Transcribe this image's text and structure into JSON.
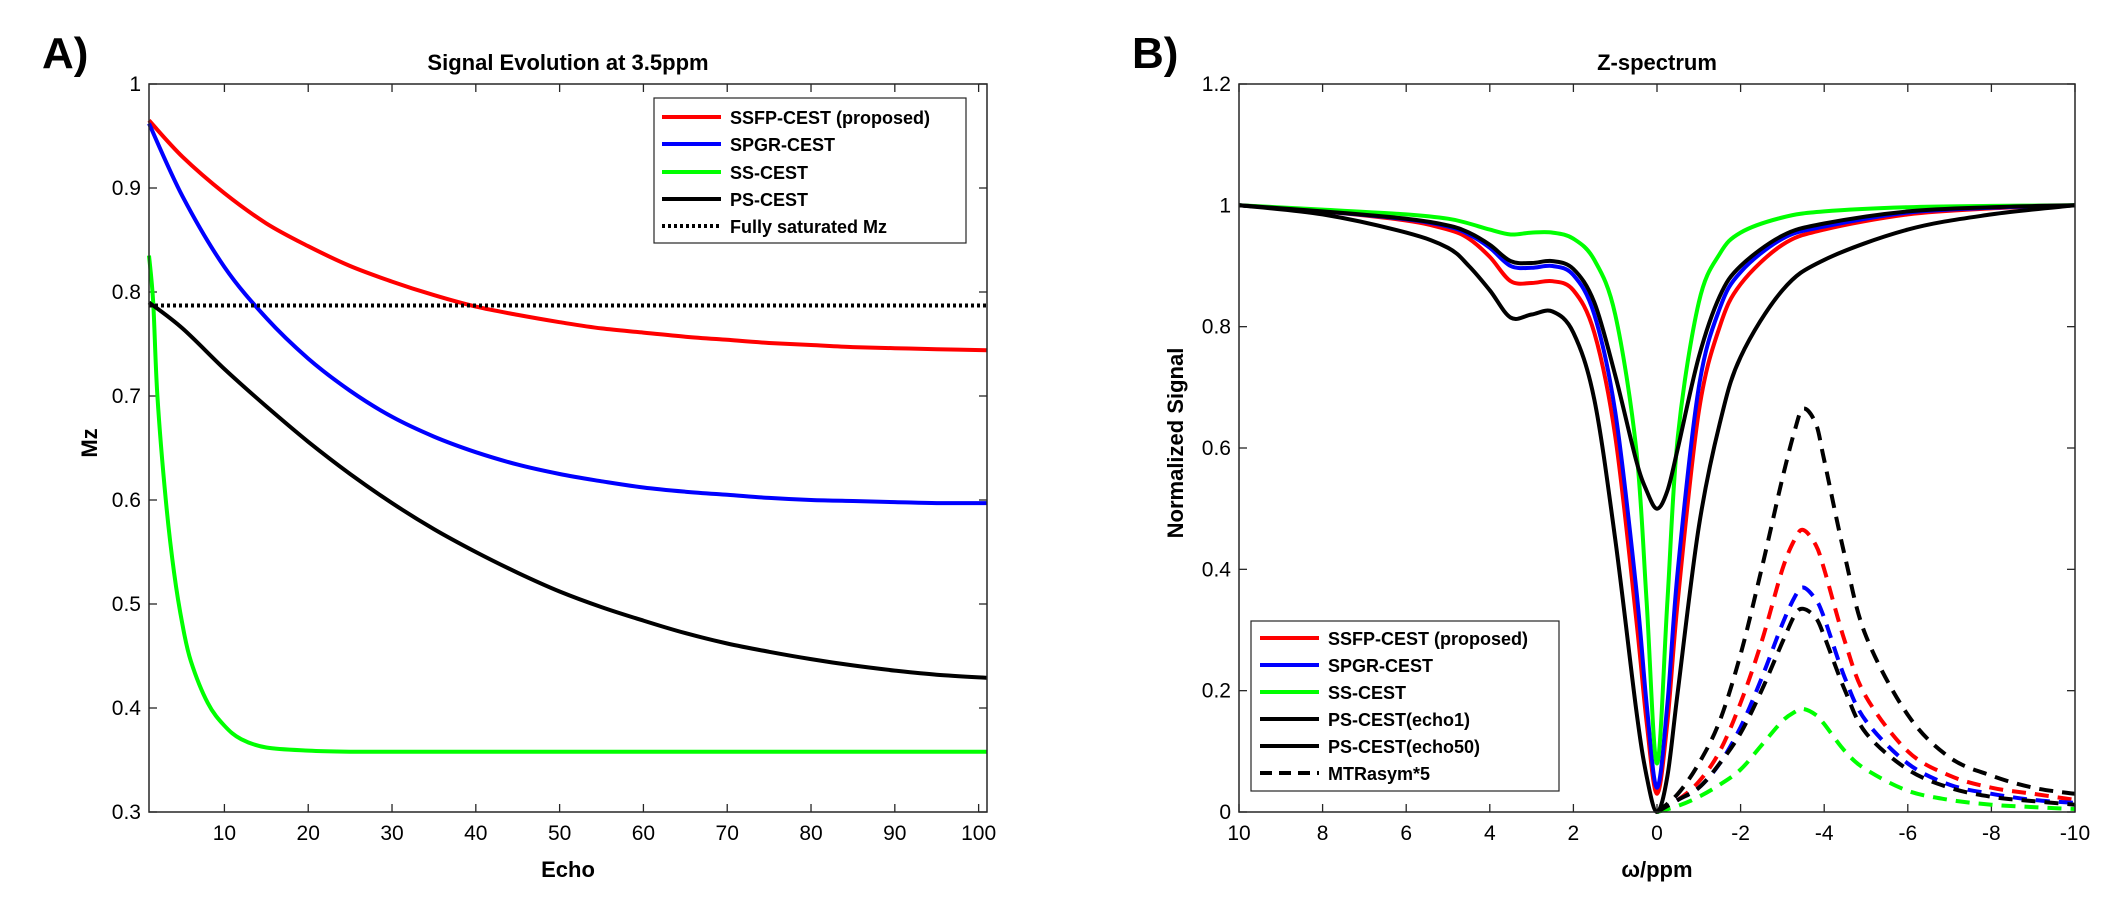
{
  "chart_data": [
    {
      "panel": "A)",
      "type": "line",
      "title": "Signal Evolution at 3.5ppm",
      "xlabel": "Echo",
      "ylabel": "Mz",
      "xlim": [
        1,
        101
      ],
      "ylim": [
        0.3,
        1.0
      ],
      "xticks": [
        10,
        20,
        30,
        40,
        50,
        60,
        70,
        80,
        90,
        100
      ],
      "yticks": [
        0.3,
        0.4,
        0.5,
        0.6,
        0.7,
        0.8,
        0.9,
        1
      ],
      "legend_position": "top-right",
      "series": [
        {
          "name": "SSFP-CEST (proposed)",
          "color": "#ff0000",
          "style": "solid",
          "x": [
            1,
            5,
            10,
            15,
            20,
            25,
            30,
            35,
            40,
            45,
            50,
            55,
            60,
            65,
            70,
            75,
            80,
            85,
            90,
            95,
            101
          ],
          "values": [
            0.965,
            0.93,
            0.895,
            0.866,
            0.844,
            0.825,
            0.81,
            0.797,
            0.786,
            0.778,
            0.771,
            0.765,
            0.761,
            0.757,
            0.754,
            0.751,
            0.749,
            0.747,
            0.746,
            0.745,
            0.744
          ]
        },
        {
          "name": "SPGR-CEST",
          "color": "#0000ff",
          "style": "solid",
          "x": [
            1,
            5,
            10,
            15,
            20,
            25,
            30,
            35,
            40,
            45,
            50,
            55,
            60,
            65,
            70,
            75,
            80,
            85,
            90,
            95,
            101
          ],
          "values": [
            0.962,
            0.892,
            0.824,
            0.775,
            0.736,
            0.705,
            0.68,
            0.661,
            0.646,
            0.634,
            0.625,
            0.618,
            0.612,
            0.608,
            0.605,
            0.602,
            0.6,
            0.599,
            0.598,
            0.597,
            0.597
          ]
        },
        {
          "name": "SS-CEST",
          "color": "#00ff00",
          "style": "solid",
          "x": [
            1,
            1.5,
            2,
            3,
            4,
            5,
            6,
            8,
            10,
            12,
            15,
            20,
            25,
            30,
            40,
            50,
            60,
            70,
            80,
            90,
            101
          ],
          "values": [
            0.835,
            0.79,
            0.7,
            0.6,
            0.53,
            0.48,
            0.445,
            0.405,
            0.383,
            0.37,
            0.362,
            0.359,
            0.358,
            0.358,
            0.358,
            0.358,
            0.358,
            0.358,
            0.358,
            0.358,
            0.358
          ]
        },
        {
          "name": "PS-CEST",
          "color": "#000000",
          "style": "solid",
          "x": [
            1,
            5,
            10,
            15,
            20,
            25,
            30,
            35,
            40,
            45,
            50,
            55,
            60,
            65,
            70,
            75,
            80,
            85,
            90,
            95,
            101
          ],
          "values": [
            0.79,
            0.765,
            0.726,
            0.69,
            0.656,
            0.625,
            0.597,
            0.572,
            0.55,
            0.53,
            0.512,
            0.497,
            0.484,
            0.472,
            0.462,
            0.454,
            0.447,
            0.441,
            0.436,
            0.432,
            0.429
          ]
        },
        {
          "name": "Fully saturated Mz",
          "color": "#000000",
          "style": "dotted",
          "x": [
            1,
            101
          ],
          "values": [
            0.787,
            0.787
          ]
        }
      ]
    },
    {
      "panel": "B)",
      "type": "line",
      "title": "Z-spectrum",
      "xlabel": "ω/ppm",
      "ylabel": "Normalized Signal",
      "xlim": [
        10,
        -10
      ],
      "ylim": [
        0,
        1.2
      ],
      "xtick_values": [
        10,
        8,
        6,
        4,
        2,
        0,
        -2,
        -4,
        -6,
        -8,
        -10
      ],
      "xtick_labels": [
        "10",
        "8",
        "6",
        "4",
        "2",
        "0",
        "-2",
        "-4",
        "-6",
        "-8",
        "-10"
      ],
      "yticks": [
        0,
        0.2,
        0.4,
        0.6,
        0.8,
        1,
        1.2
      ],
      "legend_position": "bottom-left",
      "series": [
        {
          "name": "SSFP-CEST (proposed)",
          "color": "#ff0000",
          "style": "solid",
          "x": [
            10,
            8,
            6,
            5,
            4.5,
            4,
            3.5,
            3,
            2.5,
            2,
            1.5,
            1,
            0.5,
            0.25,
            0,
            -0.25,
            -0.5,
            -1,
            -1.5,
            -2,
            -3,
            -4,
            -6,
            -8,
            -10
          ],
          "values": [
            1.0,
            0.99,
            0.975,
            0.96,
            0.945,
            0.915,
            0.875,
            0.872,
            0.875,
            0.86,
            0.79,
            0.62,
            0.32,
            0.15,
            0.03,
            0.15,
            0.35,
            0.66,
            0.8,
            0.87,
            0.935,
            0.96,
            0.985,
            0.995,
            1.0
          ]
        },
        {
          "name": "SPGR-CEST",
          "color": "#0000ff",
          "style": "solid",
          "x": [
            10,
            8,
            6,
            5,
            4.5,
            4,
            3.5,
            3,
            2.5,
            2,
            1.5,
            1,
            0.5,
            0.25,
            0,
            -0.25,
            -0.5,
            -1,
            -1.5,
            -2,
            -3,
            -4,
            -6,
            -8,
            -10
          ],
          "values": [
            1.0,
            0.99,
            0.977,
            0.965,
            0.952,
            0.93,
            0.9,
            0.897,
            0.9,
            0.885,
            0.82,
            0.66,
            0.37,
            0.18,
            0.04,
            0.18,
            0.4,
            0.7,
            0.83,
            0.89,
            0.945,
            0.965,
            0.988,
            0.996,
            1.0
          ]
        },
        {
          "name": "SS-CEST",
          "color": "#00ff00",
          "style": "solid",
          "x": [
            10,
            8,
            6,
            5,
            4.5,
            4,
            3.5,
            3,
            2.5,
            2,
            1.5,
            1,
            0.5,
            0.25,
            0,
            -0.25,
            -0.5,
            -1,
            -1.5,
            -2,
            -3,
            -4,
            -6,
            -8,
            -10
          ],
          "values": [
            1.0,
            0.993,
            0.985,
            0.978,
            0.97,
            0.96,
            0.952,
            0.955,
            0.955,
            0.945,
            0.91,
            0.82,
            0.6,
            0.35,
            0.08,
            0.35,
            0.62,
            0.84,
            0.92,
            0.955,
            0.98,
            0.99,
            0.997,
            0.999,
            1.0
          ]
        },
        {
          "name": "PS-CEST(echo1)",
          "color": "#000000",
          "style": "solid",
          "x": [
            10,
            8,
            6,
            5,
            4.5,
            4,
            3.5,
            3,
            2.5,
            2,
            1.5,
            1,
            0.5,
            0.25,
            0,
            -0.25,
            -0.5,
            -1,
            -1.5,
            -2,
            -3,
            -4,
            -6,
            -8,
            -10
          ],
          "values": [
            1.0,
            0.99,
            0.978,
            0.967,
            0.955,
            0.935,
            0.908,
            0.905,
            0.908,
            0.895,
            0.84,
            0.72,
            0.58,
            0.53,
            0.5,
            0.53,
            0.6,
            0.75,
            0.85,
            0.9,
            0.95,
            0.97,
            0.99,
            0.997,
            1.0
          ]
        },
        {
          "name": "PS-CEST(echo50)",
          "color": "#000000",
          "style": "solid",
          "x": [
            10,
            8,
            6,
            5,
            4.5,
            4,
            3.5,
            3,
            2.5,
            2,
            1.5,
            1,
            0.5,
            0.25,
            0,
            -0.25,
            -0.5,
            -1,
            -1.5,
            -2,
            -3,
            -4,
            -6,
            -8,
            -10
          ],
          "values": [
            1.0,
            0.985,
            0.955,
            0.93,
            0.9,
            0.86,
            0.815,
            0.82,
            0.825,
            0.79,
            0.68,
            0.45,
            0.17,
            0.06,
            0.0,
            0.06,
            0.2,
            0.47,
            0.64,
            0.75,
            0.86,
            0.91,
            0.96,
            0.985,
            1.0
          ]
        },
        {
          "name": "MTRasym*5 (SSFP-CEST)",
          "color": "#ff0000",
          "style": "dashed",
          "x": [
            0,
            -0.5,
            -1,
            -1.5,
            -2,
            -2.5,
            -3,
            -3.3,
            -3.5,
            -3.8,
            -4,
            -4.5,
            -5,
            -6,
            -7,
            -8,
            -9,
            -10
          ],
          "values": [
            0.0,
            0.02,
            0.05,
            0.1,
            0.18,
            0.28,
            0.4,
            0.45,
            0.465,
            0.44,
            0.4,
            0.28,
            0.19,
            0.1,
            0.06,
            0.04,
            0.03,
            0.02
          ]
        },
        {
          "name": "MTRasym*5 (SPGR-CEST)",
          "color": "#0000ff",
          "style": "dashed",
          "x": [
            0,
            -0.5,
            -1,
            -1.5,
            -2,
            -2.5,
            -3,
            -3.3,
            -3.5,
            -3.8,
            -4,
            -4.5,
            -5,
            -6,
            -7,
            -8,
            -9,
            -10
          ],
          "values": [
            0.0,
            0.02,
            0.04,
            0.08,
            0.14,
            0.22,
            0.31,
            0.355,
            0.37,
            0.35,
            0.32,
            0.22,
            0.15,
            0.08,
            0.045,
            0.03,
            0.02,
            0.015
          ]
        },
        {
          "name": "MTRasym*5 (SS-CEST)",
          "color": "#00ff00",
          "style": "dashed",
          "x": [
            0,
            -0.5,
            -1,
            -1.5,
            -2,
            -2.5,
            -3,
            -3.3,
            -3.5,
            -3.8,
            -4,
            -4.5,
            -5,
            -6,
            -7,
            -8,
            -9,
            -10
          ],
          "values": [
            0.0,
            0.01,
            0.025,
            0.045,
            0.07,
            0.11,
            0.15,
            0.165,
            0.17,
            0.16,
            0.145,
            0.1,
            0.07,
            0.035,
            0.02,
            0.012,
            0.008,
            0.005
          ]
        },
        {
          "name": "MTRasym*5 (PS-CEST echo1)",
          "color": "#000000",
          "style": "dashed",
          "x": [
            0,
            -0.5,
            -1,
            -1.5,
            -2,
            -2.5,
            -3,
            -3.3,
            -3.5,
            -3.8,
            -4,
            -4.5,
            -5,
            -6,
            -7,
            -8,
            -9,
            -10
          ],
          "values": [
            0.0,
            0.02,
            0.04,
            0.08,
            0.13,
            0.2,
            0.28,
            0.325,
            0.335,
            0.32,
            0.29,
            0.2,
            0.13,
            0.07,
            0.04,
            0.025,
            0.018,
            0.012
          ]
        },
        {
          "name": "MTRasym*5 (PS-CEST echo50)",
          "color": "#000000",
          "style": "dashed",
          "x": [
            0,
            -0.5,
            -1,
            -1.5,
            -2,
            -2.5,
            -3,
            -3.3,
            -3.5,
            -3.8,
            -4,
            -4.5,
            -5,
            -6,
            -7,
            -8,
            -9,
            -10
          ],
          "values": [
            0.0,
            0.03,
            0.08,
            0.15,
            0.26,
            0.4,
            0.55,
            0.63,
            0.665,
            0.64,
            0.58,
            0.42,
            0.29,
            0.16,
            0.09,
            0.06,
            0.04,
            0.03
          ]
        }
      ],
      "legend": [
        {
          "label": "SSFP-CEST (proposed)",
          "color": "#ff0000",
          "style": "solid"
        },
        {
          "label": "SPGR-CEST",
          "color": "#0000ff",
          "style": "solid"
        },
        {
          "label": "SS-CEST",
          "color": "#00ff00",
          "style": "solid"
        },
        {
          "label": "PS-CEST(echo1)",
          "color": "#000000",
          "style": "solid"
        },
        {
          "label": "PS-CEST(echo50)",
          "color": "#000000",
          "style": "solid"
        },
        {
          "label": "MTRasym*5",
          "color": "#000000",
          "style": "dashed"
        }
      ]
    }
  ]
}
